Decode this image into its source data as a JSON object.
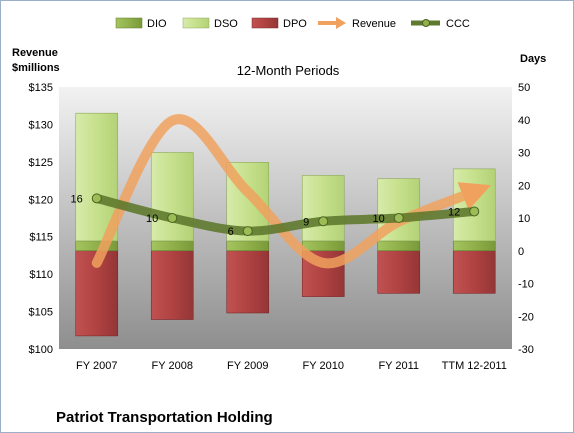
{
  "chart_data": {
    "type": "bar",
    "title": "12-Month Periods",
    "company": "Patriot Transportation Holding",
    "ylabel_left": [
      "Revenue",
      "$millions"
    ],
    "ylabel_right": "Days",
    "left_axis": {
      "min": 100,
      "max": 135,
      "step": 5,
      "ticks": [
        "$100",
        "$105",
        "$110",
        "$115",
        "$120",
        "$125",
        "$130",
        "$135"
      ]
    },
    "right_axis": {
      "min": -30,
      "max": 50,
      "step": 10,
      "ticks": [
        "-30",
        "-20",
        "-10",
        "0",
        "10",
        "20",
        "30",
        "40",
        "50"
      ]
    },
    "categories": [
      "FY 2007",
      "FY 2008",
      "FY 2009",
      "FY 2010",
      "FY 2011",
      "TTM 12-2011"
    ],
    "legend": [
      "DIO",
      "DSO",
      "DPO",
      "Revenue",
      "CCC"
    ],
    "legend_position": "top",
    "series": [
      {
        "name": "DIO",
        "axis": "right",
        "values": [
          3,
          3,
          3,
          3,
          3,
          3
        ]
      },
      {
        "name": "DSO",
        "axis": "right",
        "values": [
          39,
          27,
          24,
          20,
          19,
          22
        ]
      },
      {
        "name": "DPO",
        "axis": "right",
        "values": [
          -26,
          -21,
          -19,
          -14,
          -13,
          -13
        ]
      },
      {
        "name": "Revenue",
        "axis": "left",
        "values": [
          111.5,
          130.5,
          121.0,
          111.5,
          117.0,
          121.0
        ]
      },
      {
        "name": "CCC",
        "axis": "right",
        "values": [
          16,
          10,
          6,
          9,
          10,
          12
        ]
      }
    ],
    "colors": {
      "dio": "#8fb04a",
      "dso": "#c6e08c",
      "dpo": "#b54747",
      "revenue": "#f0a15e",
      "ccc": "#5f7a2e",
      "bg_top": "#f2f2f2",
      "bg_bottom": "#8e8e8e"
    }
  }
}
